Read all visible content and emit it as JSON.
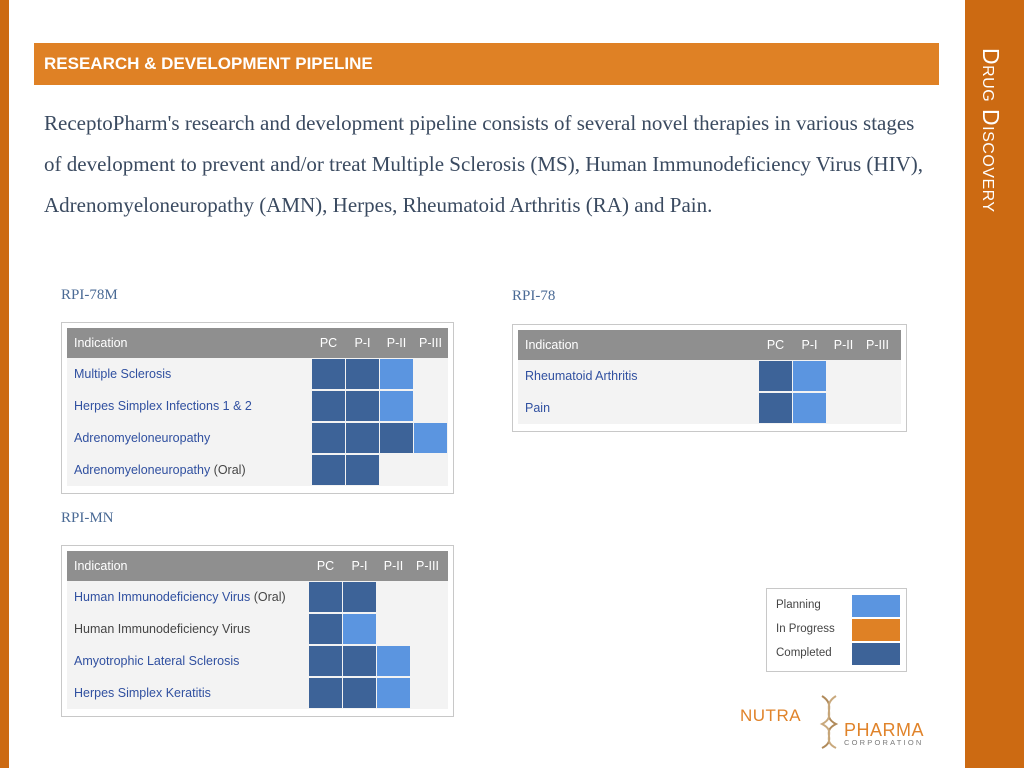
{
  "header": {
    "title": "RESEARCH & DEVELOPMENT PIPELINE"
  },
  "side_title": "Drug Discovery",
  "intro": "ReceptoPharm's research and development pipeline consists of several novel therapies in various stages of development to prevent and/or treat Multiple Sclerosis (MS), Human Immunodeficiency Virus (HIV), Adrenomyeloneuropathy (AMN), Herpes, Rheumatoid Arthritis (RA) and Pain.",
  "colors": {
    "completed": "#3d6398",
    "planning": "#5b95e0",
    "in_progress": "#df8125",
    "accent": "#cc6a12"
  },
  "pipelines": {
    "rpi78m": {
      "label": "RPI-78M",
      "columns": [
        "Indication",
        "PC",
        "P-I",
        "P-II",
        "P-III"
      ],
      "rows": [
        {
          "label": "Multiple Sclerosis",
          "suffix": "",
          "phases": [
            "completed",
            "completed",
            "planning",
            ""
          ]
        },
        {
          "label": "Herpes Simplex Infections 1 & 2",
          "suffix": "",
          "phases": [
            "completed",
            "completed",
            "planning",
            ""
          ]
        },
        {
          "label": "Adrenomyeloneuropathy",
          "suffix": "",
          "phases": [
            "completed",
            "completed",
            "completed",
            "planning"
          ]
        },
        {
          "label": "Adrenomyeloneuropathy",
          "suffix": " (Oral)",
          "phases": [
            "completed",
            "completed",
            "",
            ""
          ]
        }
      ]
    },
    "rpi78": {
      "label": "RPI-78",
      "columns": [
        "Indication",
        "PC",
        "P-I",
        "P-II",
        "P-III"
      ],
      "rows": [
        {
          "label": "Rheumatoid Arthritis",
          "suffix": "",
          "phases": [
            "completed",
            "planning",
            "",
            ""
          ]
        },
        {
          "label": "Pain",
          "suffix": "",
          "phases": [
            "completed",
            "planning",
            "",
            ""
          ]
        }
      ]
    },
    "rpimn": {
      "label": "RPI-MN",
      "columns": [
        "Indication",
        "PC",
        "P-I",
        "P-II",
        "P-III"
      ],
      "rows": [
        {
          "label": "Human Immunodeficiency Virus",
          "suffix": " (Oral)",
          "phases": [
            "completed",
            "completed",
            "",
            ""
          ]
        },
        {
          "label": "Human Immunodeficiency Virus",
          "suffix": "",
          "dark": true,
          "phases": [
            "completed",
            "planning",
            "",
            ""
          ]
        },
        {
          "label": "Amyotrophic Lateral Sclerosis",
          "suffix": "",
          "phases": [
            "completed",
            "completed",
            "planning",
            ""
          ]
        },
        {
          "label": "Herpes Simplex Keratitis",
          "suffix": "",
          "phases": [
            "completed",
            "completed",
            "planning",
            ""
          ]
        }
      ]
    }
  },
  "legend": [
    {
      "label": "Planning",
      "status": "planning"
    },
    {
      "label": "In Progress",
      "status": "in_progress"
    },
    {
      "label": "Completed",
      "status": "completed"
    }
  ],
  "logo": {
    "word1": "NUTRA",
    "word2": "PHARMA",
    "word3": "CORPORATION"
  }
}
